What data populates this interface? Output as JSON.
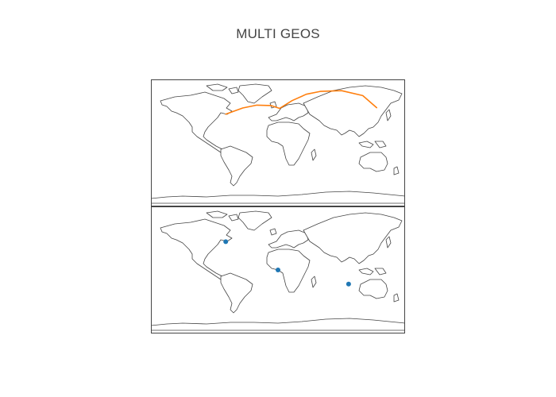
{
  "title": "MULTI GEOS",
  "chart_data": [
    {
      "type": "line",
      "projection": "equirectangular",
      "lonaxis_range": [
        -180,
        180
      ],
      "lataxis_range": [
        -90,
        90
      ],
      "series": [
        {
          "color": "#ff7f0e",
          "lon": [
            -73.9,
            -50.0,
            -30.0,
            -10.0,
            2.3,
            20.0,
            40.0,
            60.0,
            90.0,
            120.0,
            139.7
          ],
          "lat": [
            40.7,
            49.5,
            53.5,
            53.0,
            48.9,
            60.0,
            69.0,
            73.0,
            74.0,
            67.0,
            50.0
          ]
        }
      ]
    },
    {
      "type": "scatter",
      "projection": "equirectangular",
      "lonaxis_range": [
        -180,
        180
      ],
      "lataxis_range": [
        -90,
        90
      ],
      "series": [
        {
          "color": "#1f77b4",
          "lon": [
            -74.0,
            0.0,
            100.0
          ],
          "lat": [
            40.0,
            0.0,
            -20.0
          ]
        }
      ]
    }
  ]
}
